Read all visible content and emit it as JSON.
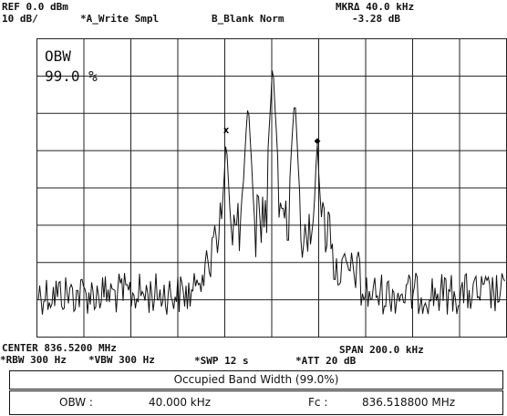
{
  "header": {
    "ref_level": "REF 0.0 dBm",
    "scale": "10 dB/",
    "trace_a": "*A_Write Smpl",
    "trace_b": "B_Blank Norm",
    "marker_delta": "MKRΔ 40.0 kHz",
    "marker_level": "-3.28 dB"
  },
  "overlay": {
    "measurement_name": "OBW",
    "measurement_value": "99.0 %"
  },
  "footer": {
    "center_freq": "CENTER 836.5200 MHz",
    "span": "SPAN 200.0 kHz",
    "rbw": "*RBW 300 Hz",
    "vbw": "*VBW 300 Hz",
    "sweep": "*SWP 12 s",
    "attenuation": "*ATT 20 dB"
  },
  "result": {
    "title": "Occupied Band Width (99.0%)",
    "obw_label": "OBW :",
    "obw_value": "40.000 kHz",
    "fc_label": "Fc :",
    "fc_value": "836.518800 MHz"
  },
  "markers": [
    {
      "name": "marker-x",
      "glyph": "x"
    },
    {
      "name": "marker-diamond",
      "glyph": "◆"
    }
  ],
  "colors": {
    "trace": "#111111",
    "grid": "#222222",
    "background": "#ffffff"
  }
}
